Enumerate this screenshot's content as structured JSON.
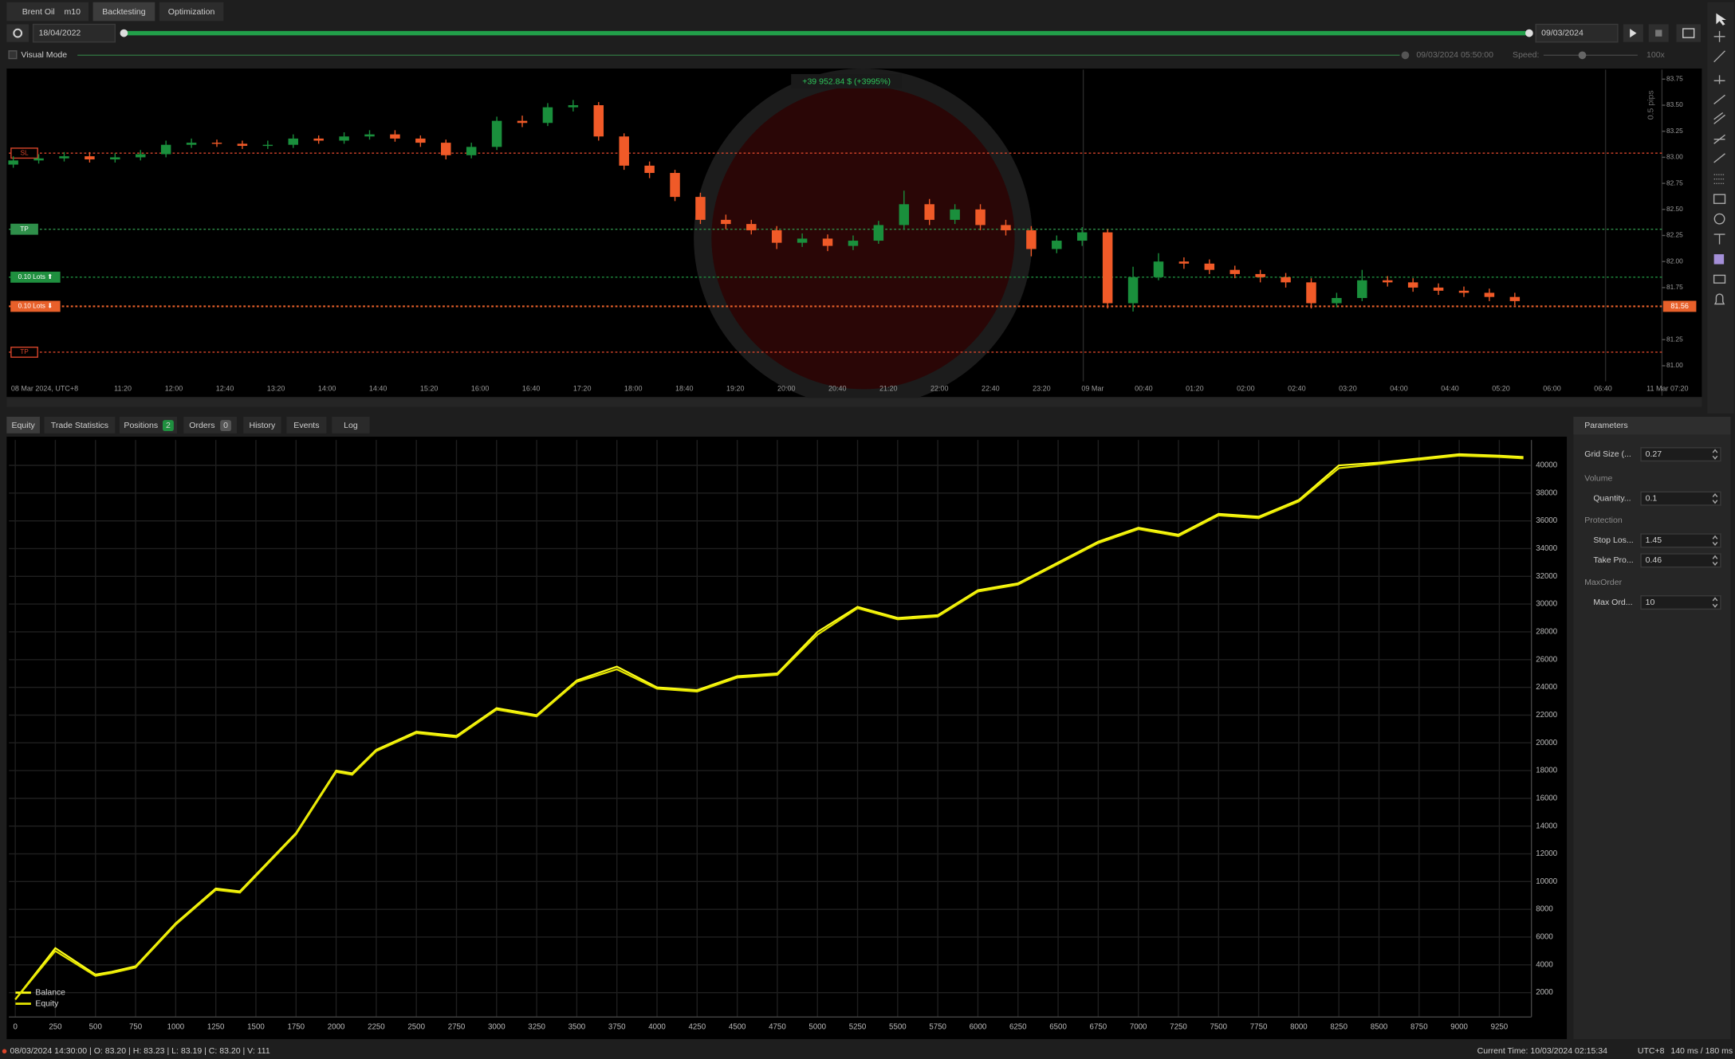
{
  "tabs": {
    "symbol": "Brent Oil",
    "timeframe": "m10",
    "backtesting": "Backtesting",
    "optimization": "Optimization"
  },
  "toolbar": {
    "start_date": "18/04/2022",
    "end_date": "09/03/2024",
    "visual_mode": "Visual Mode",
    "current_time": "09/03/2024 05:50:00",
    "speed_label": "Speed:",
    "speed": "100x"
  },
  "price_chart": {
    "type": "candlestick",
    "profit": "+39 952.84 $ (+3995%)",
    "pips": "0.5 pips",
    "last_price": "81.56",
    "ylim": [
      80.85,
      83.82
    ],
    "yticks": [
      83.75,
      {
        "value": 83.5,
        "label": "83.50"
      },
      83.25,
      {
        "value": 83,
        "label": "83.00"
      },
      82.75,
      {
        "value": 82.5,
        "label": "82.50"
      },
      82.25,
      {
        "value": 82,
        "label": "82.00"
      },
      81.75,
      81.25,
      {
        "value": 81,
        "label": "81.00"
      }
    ],
    "x_labels": [
      "08 Mar 2024, UTC+8",
      "11:20",
      "12:00",
      "12:40",
      "13:20",
      "14:00",
      "14:40",
      "15:20",
      "16:00",
      "16:40",
      "17:20",
      "18:00",
      "18:40",
      "19:20",
      "20:00",
      "20:40",
      "21:20",
      "22:00",
      "22:40",
      "23:20",
      "09 Mar",
      "00:40",
      "01:20",
      "02:00",
      "02:40",
      "03:20",
      "04:00",
      "04:40",
      "05:20",
      "06:00",
      "06:40",
      "11 Mar 07:20"
    ],
    "levels": [
      {
        "label": "SL",
        "value": 83.04,
        "color": "#d9452b"
      },
      {
        "label": "TP",
        "value": 82.31,
        "color": "#2f8f4a"
      },
      {
        "label": "0.10 Lots ⬆",
        "value": 81.85,
        "color": "#1f8f3f"
      },
      {
        "label": "0.10 Lots ⬇",
        "value": 81.57,
        "color": "#e8602a"
      },
      {
        "label": "TP",
        "value": 81.13,
        "color": "#d9452b"
      }
    ],
    "candles": [
      [
        82.93,
        83.01,
        82.9,
        82.97
      ],
      [
        82.97,
        83.03,
        82.94,
        82.99
      ],
      [
        82.99,
        83.05,
        82.96,
        83.01
      ],
      [
        83.01,
        83.05,
        82.95,
        82.98
      ],
      [
        82.98,
        83.04,
        82.95,
        83.0
      ],
      [
        83.0,
        83.07,
        82.97,
        83.03
      ],
      [
        83.03,
        83.16,
        83.0,
        83.12
      ],
      [
        83.12,
        83.18,
        83.09,
        83.14
      ],
      [
        83.14,
        83.17,
        83.1,
        83.13
      ],
      [
        83.13,
        83.16,
        83.08,
        83.11
      ],
      [
        83.11,
        83.16,
        83.08,
        83.12
      ],
      [
        83.12,
        83.22,
        83.09,
        83.18
      ],
      [
        83.18,
        83.21,
        83.13,
        83.16
      ],
      [
        83.16,
        83.24,
        83.13,
        83.2
      ],
      [
        83.2,
        83.26,
        83.17,
        83.22
      ],
      [
        83.22,
        83.26,
        83.15,
        83.18
      ],
      [
        83.18,
        83.21,
        83.1,
        83.14
      ],
      [
        83.14,
        83.17,
        82.98,
        83.02
      ],
      [
        83.02,
        83.14,
        82.99,
        83.1
      ],
      [
        83.1,
        83.39,
        83.07,
        83.35
      ],
      [
        83.35,
        83.4,
        83.29,
        83.33
      ],
      [
        83.33,
        83.52,
        83.3,
        83.48
      ],
      [
        83.48,
        83.55,
        83.44,
        83.5
      ],
      [
        83.5,
        83.53,
        83.16,
        83.2
      ],
      [
        83.2,
        83.23,
        82.88,
        82.92
      ],
      [
        82.92,
        82.96,
        82.8,
        82.85
      ],
      [
        82.85,
        82.88,
        82.58,
        82.62
      ],
      [
        82.62,
        82.66,
        82.36,
        82.4
      ],
      [
        82.4,
        82.45,
        82.31,
        82.36
      ],
      [
        82.36,
        82.4,
        82.26,
        82.3
      ],
      [
        82.3,
        82.34,
        82.12,
        82.18
      ],
      [
        82.18,
        82.27,
        82.14,
        82.22
      ],
      [
        82.22,
        82.26,
        82.1,
        82.15
      ],
      [
        82.15,
        82.25,
        82.11,
        82.2
      ],
      [
        82.2,
        82.39,
        82.17,
        82.35
      ],
      [
        82.35,
        82.68,
        82.31,
        82.55
      ],
      [
        82.55,
        82.6,
        82.35,
        82.4
      ],
      [
        82.4,
        82.55,
        82.36,
        82.5
      ],
      [
        82.5,
        82.55,
        82.3,
        82.35
      ],
      [
        82.35,
        82.4,
        82.25,
        82.3
      ],
      [
        82.3,
        82.34,
        82.05,
        82.12
      ],
      [
        82.12,
        82.25,
        82.08,
        82.2
      ],
      [
        82.2,
        82.33,
        82.15,
        82.28
      ],
      [
        82.28,
        82.31,
        81.55,
        81.6
      ],
      [
        81.6,
        81.95,
        81.52,
        81.85
      ],
      [
        81.85,
        82.08,
        81.82,
        82.0
      ],
      [
        82.0,
        82.04,
        81.93,
        81.98
      ],
      [
        81.98,
        82.02,
        81.88,
        81.92
      ],
      [
        81.92,
        81.96,
        81.84,
        81.88
      ],
      [
        81.88,
        81.92,
        81.8,
        81.85
      ],
      [
        81.85,
        81.89,
        81.75,
        81.8
      ],
      [
        81.8,
        81.84,
        81.55,
        81.6
      ],
      [
        81.6,
        81.7,
        81.56,
        81.65
      ],
      [
        81.65,
        81.92,
        81.62,
        81.82
      ],
      [
        81.82,
        81.86,
        81.76,
        81.8
      ],
      [
        81.8,
        81.84,
        81.71,
        81.75
      ],
      [
        81.75,
        81.79,
        81.68,
        81.72
      ],
      [
        81.72,
        81.76,
        81.66,
        81.7
      ],
      [
        81.7,
        81.74,
        81.62,
        81.66
      ],
      [
        81.66,
        81.7,
        81.58,
        81.62
      ]
    ],
    "bull_color": "#1a8f3c",
    "bear_color": "#f05a28"
  },
  "bottom_tabs": {
    "equity": "Equity",
    "trade_statistics": "Trade Statistics",
    "positions": "Positions",
    "positions_count": "2",
    "orders": "Orders",
    "orders_count": "0",
    "history": "History",
    "events": "Events",
    "log": "Log"
  },
  "equity_chart": {
    "type": "line",
    "xlim": [
      -40,
      9450
    ],
    "ylim": [
      240,
      41830
    ],
    "xticks": [
      0,
      250,
      500,
      750,
      1000,
      1250,
      1500,
      1750,
      2000,
      2250,
      2500,
      2750,
      3000,
      3250,
      3500,
      3750,
      4000,
      4250,
      4500,
      4750,
      5000,
      5250,
      5500,
      5750,
      6000,
      6250,
      6500,
      6750,
      7000,
      7250,
      7500,
      7750,
      8000,
      8250,
      8500,
      8750,
      9000,
      9250
    ],
    "yticks": [
      2000,
      4000,
      6000,
      8000,
      10000,
      12000,
      14000,
      16000,
      18000,
      20000,
      22000,
      24000,
      26000,
      28000,
      30000,
      32000,
      34000,
      36000,
      38000,
      40000
    ],
    "grid": true,
    "x": [
      0,
      250,
      500,
      600,
      750,
      1000,
      1250,
      1400,
      1500,
      1750,
      2000,
      2100,
      2250,
      2500,
      2750,
      3000,
      3250,
      3500,
      3750,
      4000,
      4250,
      4500,
      4750,
      5000,
      5250,
      5500,
      5750,
      6000,
      6250,
      6500,
      6750,
      7000,
      7250,
      7500,
      7750,
      8000,
      8250,
      8500,
      8750,
      9000,
      9250,
      9400
    ],
    "series": [
      {
        "name": "Balance",
        "color": "#ffff1a",
        "values": [
          1500,
          5200,
          3300,
          3500,
          3900,
          7000,
          9500,
          9300,
          10500,
          13500,
          18000,
          17800,
          19500,
          20800,
          20500,
          22500,
          22000,
          24500,
          25500,
          24000,
          23800,
          24800,
          25000,
          28000,
          29800,
          29000,
          29200,
          31000,
          31500,
          33000,
          34500,
          35500,
          35000,
          36500,
          36300,
          37500,
          40000,
          40200,
          40500,
          40800,
          40700,
          40600
        ]
      },
      {
        "name": "Equity",
        "color": "#e6e600",
        "values": [
          1500,
          5000,
          3200,
          3400,
          3800,
          6900,
          9400,
          9200,
          10400,
          13400,
          17900,
          17700,
          19400,
          20700,
          20400,
          22400,
          21900,
          24400,
          25300,
          23900,
          23700,
          24700,
          24900,
          27800,
          29700,
          28900,
          29100,
          30900,
          31400,
          32900,
          34400,
          35400,
          34900,
          36400,
          36200,
          37400,
          39800,
          40100,
          40400,
          40700,
          40600,
          40500
        ]
      }
    ]
  },
  "parameters": {
    "title": "Parameters",
    "rows": [
      {
        "label": "Grid Size (...",
        "value": "0.27"
      },
      {
        "group": "Volume"
      },
      {
        "label": "Quantity...",
        "value": "0.1"
      },
      {
        "group": "Protection"
      },
      {
        "label": "Stop Los...",
        "value": "1.45"
      },
      {
        "label": "Take Pro...",
        "value": "0.46"
      },
      {
        "group": "MaxOrder"
      },
      {
        "label": "Max Ord...",
        "value": "10"
      }
    ]
  },
  "status": {
    "bar": "08/03/2024 14:30:00 | O: 83.20 | H: 83.23 | L: 83.19 | C: 83.20 | V: 111",
    "current_time": "Current Time: 10/03/2024 02:15:34",
    "timezone": "UTC+8",
    "latency": "140 ms / 180 ms"
  }
}
